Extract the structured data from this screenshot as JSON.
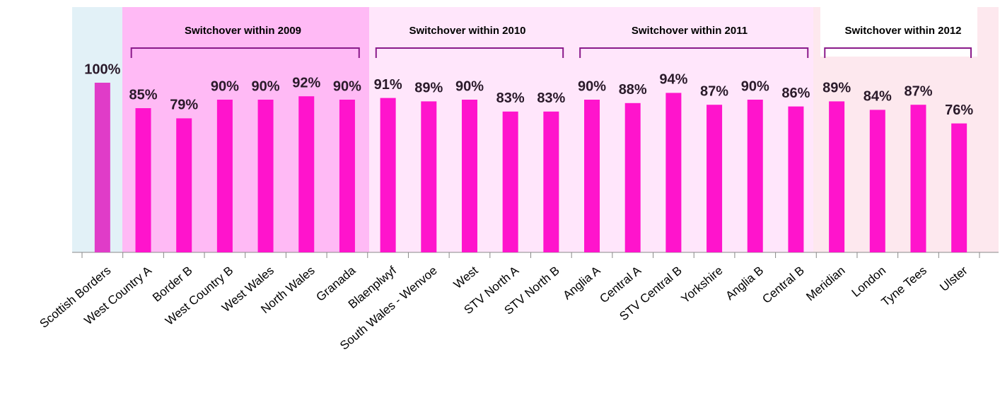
{
  "chart_data": {
    "type": "bar",
    "categories": [
      "Scottish Borders",
      "West Country A",
      "Border B",
      "West Country B",
      "West Wales",
      "North Wales",
      "Granada",
      "Blaenplwyf",
      "South Wales - Wenvoe",
      "West",
      "STV North A",
      "STV North B",
      "Anglia A",
      "Central A",
      "STV Central B",
      "Yorkshire",
      "Anglia B",
      "Central B",
      "Meridian",
      "London",
      "Tyne Tees",
      "Ulster"
    ],
    "values": [
      100,
      85,
      79,
      90,
      90,
      92,
      90,
      91,
      89,
      90,
      83,
      83,
      90,
      88,
      94,
      87,
      90,
      86,
      89,
      84,
      87,
      76
    ],
    "value_labels": [
      "100%",
      "85%",
      "79%",
      "90%",
      "90%",
      "92%",
      "90%",
      "91%",
      "89%",
      "90%",
      "83%",
      "83%",
      "90%",
      "88%",
      "94%",
      "87%",
      "90%",
      "86%",
      "89%",
      "84%",
      "87%",
      "76%"
    ],
    "colors": [
      "#e03cc8",
      "#ff14cc",
      "#ff14cc",
      "#ff14cc",
      "#ff14cc",
      "#ff14cc",
      "#ff14cc",
      "#ff14cc",
      "#ff14cc",
      "#ff14cc",
      "#ff14cc",
      "#ff14cc",
      "#ff14cc",
      "#ff14cc",
      "#ff14cc",
      "#ff14cc",
      "#ff14cc",
      "#ff14cc",
      "#ff14cc",
      "#ff14cc",
      "#ff14cc",
      "#ff14cc"
    ],
    "ylim": [
      0,
      100
    ],
    "groups": [
      {
        "label": "Switchover within 2009",
        "color": "#ffbaf5"
      },
      {
        "label": "Switchover within 2010",
        "color": "#ffe6fb"
      },
      {
        "label": "Switchover within 2011",
        "color": "#ffe6fb"
      },
      {
        "label": "Switchover within 2012",
        "color": "#fde8ee"
      }
    ]
  }
}
